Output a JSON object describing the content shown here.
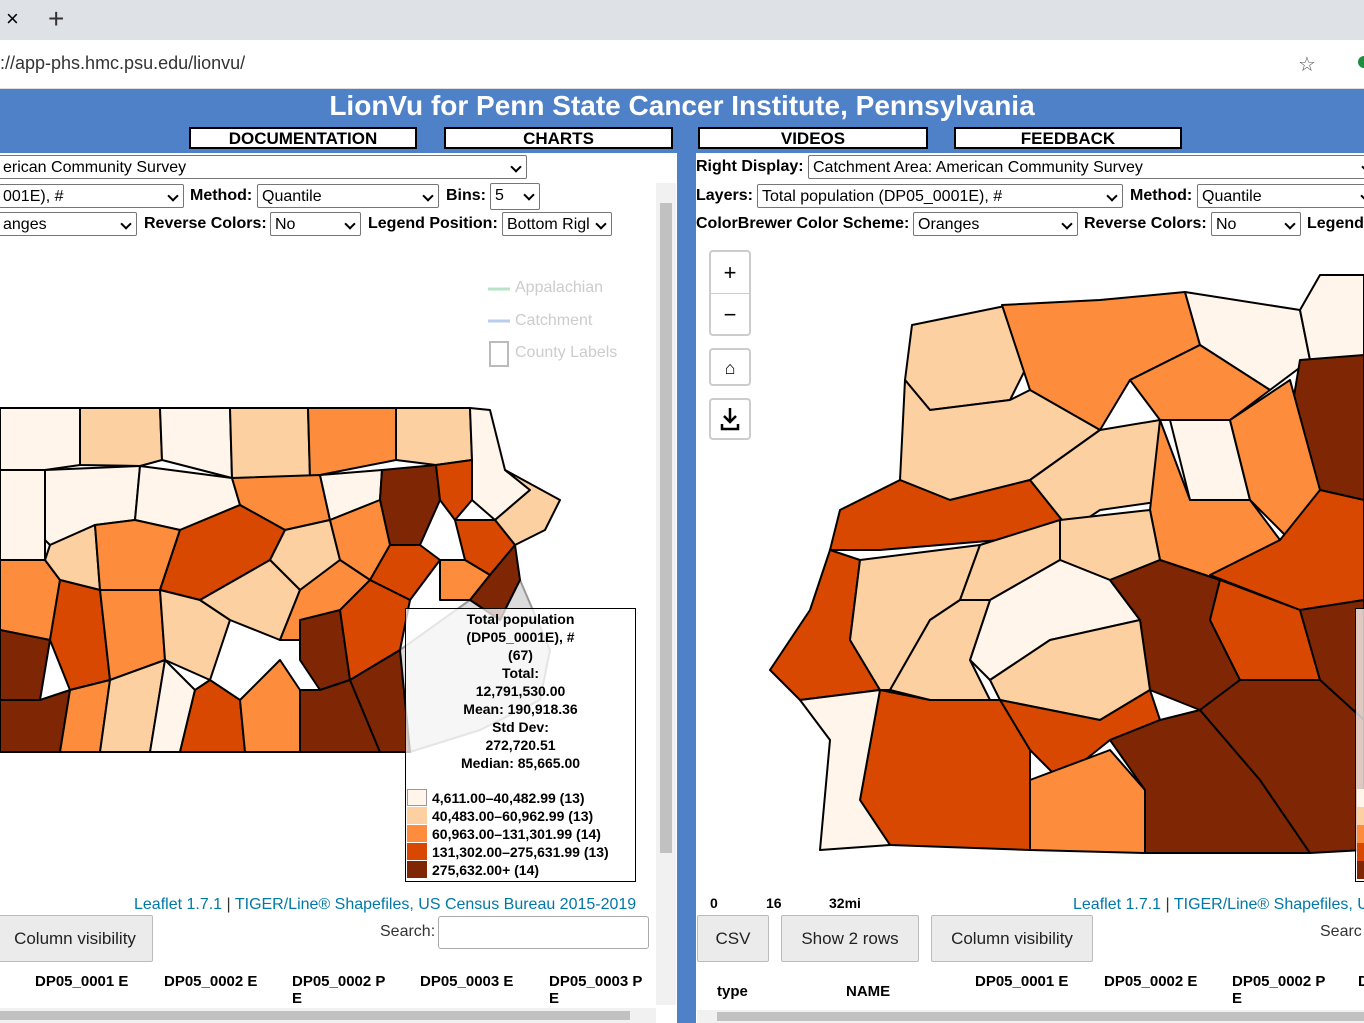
{
  "browser": {
    "url": "://app-phs.hmc.psu.edu/lionvu/"
  },
  "header": {
    "title": "LionVu for Penn State Cancer Institute, Pennsylvania",
    "nav": [
      "DOCUMENTATION",
      "CHARTS",
      "VIDEOS",
      "FEEDBACK"
    ]
  },
  "left": {
    "display": "erican Community Survey",
    "layer": "001E), #",
    "method_label": "Method:",
    "method": "Quantile",
    "bins_label": "Bins:",
    "bins": "5",
    "scheme": "anges",
    "reverse_label": "Reverse Colors:",
    "reverse": "No",
    "legend_position_label": "Legend Position:",
    "legend_position": "Bottom Rigl",
    "overlays": [
      "Appalachian",
      "Catchment",
      "County Labels"
    ],
    "legend": {
      "lines": [
        "Total population",
        "(DP05_0001E), #",
        "(67)",
        "Total:",
        "12,791,530.00",
        "Mean: 190,918.36",
        "Std Dev:",
        "272,720.51",
        "Median: 85,665.00"
      ],
      "classes": [
        "4,611.00–40,482.99 (13)",
        "40,483.00–60,962.99 (13)",
        "60,963.00–131,301.99 (14)",
        "131,302.00–275,631.99 (13)",
        "275,632.00+ (14)"
      ]
    },
    "attribution": {
      "leaflet": "Leaflet 1.7.1",
      "separator": "|",
      "source": "TIGER/Line® Shapefiles, US Census Bureau 2015-2019"
    },
    "buttons": [
      "Column visibility"
    ],
    "search_label": "Search:",
    "columns": [
      "DP05_0001 E",
      "DP05_0002 E",
      "DP05_0002 PE",
      "DP05_0003 E",
      "DP05_0003 PE"
    ]
  },
  "right": {
    "display_label": "Right Display:",
    "display": "Catchment Area: American Community Survey",
    "layers_label": "Layers:",
    "layer": "Total population (DP05_0001E), #",
    "method_label": "Method:",
    "method": "Quantile",
    "scheme_label": "ColorBrewer Color Scheme:",
    "scheme": "Oranges",
    "reverse_label": "Reverse Colors:",
    "reverse": "No",
    "legend_label": "Legend",
    "zoom": [
      "+",
      "−"
    ],
    "scale": [
      "0",
      "16",
      "32mi"
    ],
    "attribution": {
      "leaflet": "Leaflet 1.7.1",
      "separator": "|",
      "source": "TIGER/Line® Shapefiles, U"
    },
    "buttons": [
      "CSV",
      "Show 2 rows",
      "Column visibility"
    ],
    "search_label": "Searc",
    "columns": [
      "type",
      "NAME",
      "DP05_0001 E",
      "DP05_0002 E",
      "DP05_0002 PE",
      "D"
    ]
  }
}
